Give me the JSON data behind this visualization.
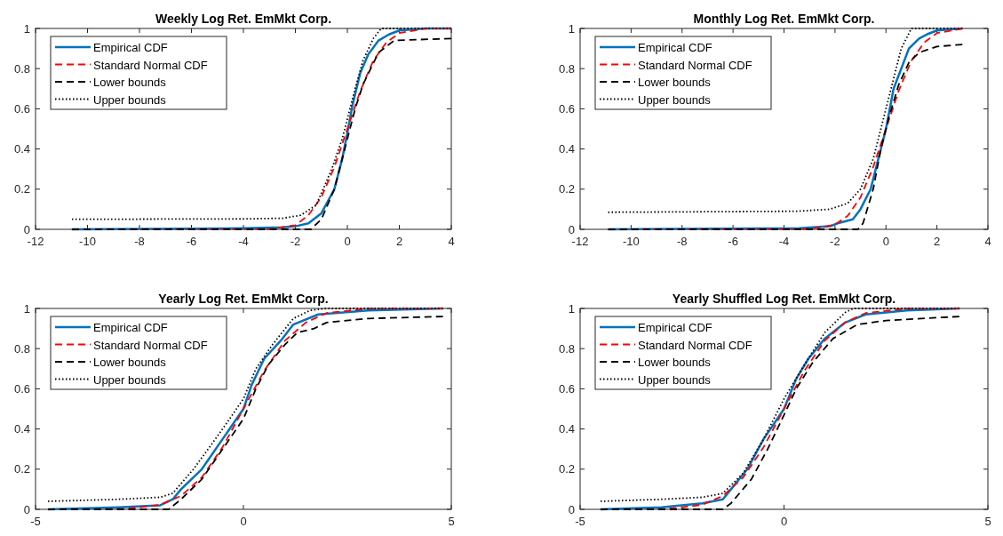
{
  "chart_data": [
    {
      "type": "line",
      "title": "Weekly Log Ret. EmMkt Corp.",
      "xlim": [
        -12,
        4
      ],
      "xticks": [
        -12,
        -10,
        -8,
        -6,
        -4,
        -2,
        0,
        2,
        4
      ],
      "ylim": [
        0,
        1
      ],
      "yticks": [
        0,
        0.2,
        0.4,
        0.6,
        0.8,
        1
      ],
      "grid": false,
      "legend": "top left",
      "series": [
        {
          "name": "Empirical CDF",
          "color": "#0072bd",
          "line_style": "solid",
          "x": [
            -10.6,
            -4,
            -2.5,
            -2,
            -1.5,
            -1,
            -0.5,
            -0.2,
            0,
            0.2,
            0.5,
            0.8,
            1.2,
            1.6,
            2,
            3,
            4
          ],
          "values": [
            0,
            0.005,
            0.01,
            0.015,
            0.03,
            0.08,
            0.2,
            0.35,
            0.48,
            0.62,
            0.78,
            0.87,
            0.94,
            0.97,
            0.99,
            1,
            1
          ]
        },
        {
          "name": "Standard Normal CDF",
          "color": "#ff0000",
          "line_style": "dashed",
          "x": [
            -10.6,
            -3,
            -2,
            -1.5,
            -1,
            -0.5,
            0,
            0.5,
            1,
            1.5,
            2,
            3,
            4
          ],
          "values": [
            0,
            0.001,
            0.02,
            0.07,
            0.16,
            0.31,
            0.5,
            0.69,
            0.84,
            0.93,
            0.977,
            0.999,
            1
          ]
        },
        {
          "name": "Lower bounds",
          "color": "#000000",
          "line_style": "dashed",
          "x": [
            -10.6,
            -1.4,
            -1,
            -0.5,
            0,
            0.3,
            0.6,
            1.2,
            1.8,
            4
          ],
          "values": [
            0,
            0,
            0.05,
            0.2,
            0.45,
            0.6,
            0.72,
            0.88,
            0.94,
            0.95
          ]
        },
        {
          "name": "Upper bounds",
          "color": "#000000",
          "line_style": "dotted",
          "x": [
            -10.6,
            -4,
            -2.5,
            -1.8,
            -1.2,
            -0.6,
            -0.2,
            0,
            0.3,
            0.6,
            1,
            1.3,
            4
          ],
          "values": [
            0.05,
            0.052,
            0.055,
            0.07,
            0.12,
            0.3,
            0.45,
            0.55,
            0.7,
            0.84,
            0.95,
            1,
            1
          ]
        }
      ]
    },
    {
      "type": "line",
      "title": "Monthly Log Ret. EmMkt Corp.",
      "xlim": [
        -12,
        4
      ],
      "xticks": [
        -12,
        -10,
        -8,
        -6,
        -4,
        -2,
        0,
        2,
        4
      ],
      "ylim": [
        0,
        1
      ],
      "yticks": [
        0,
        0.2,
        0.4,
        0.6,
        0.8,
        1
      ],
      "grid": false,
      "legend": "top left",
      "series": [
        {
          "name": "Empirical CDF",
          "color": "#0072bd",
          "line_style": "solid",
          "x": [
            -10.9,
            -3.4,
            -2.2,
            -1.9,
            -1.3,
            -1,
            -0.6,
            -0.3,
            0,
            0.3,
            0.6,
            0.9,
            1.3,
            1.6,
            2,
            3
          ],
          "values": [
            0,
            0.005,
            0.015,
            0.03,
            0.05,
            0.1,
            0.2,
            0.35,
            0.5,
            0.7,
            0.8,
            0.9,
            0.95,
            0.97,
            0.99,
            1
          ]
        },
        {
          "name": "Standard Normal CDF",
          "color": "#ff0000",
          "line_style": "dashed",
          "x": [
            -10.9,
            -3,
            -2,
            -1.5,
            -1,
            -0.5,
            0,
            0.5,
            1,
            1.5,
            2,
            3
          ],
          "values": [
            0,
            0.001,
            0.023,
            0.067,
            0.159,
            0.31,
            0.5,
            0.69,
            0.84,
            0.93,
            0.977,
            0.999
          ]
        },
        {
          "name": "Lower bounds",
          "color": "#000000",
          "line_style": "dashed",
          "x": [
            -10.9,
            -1.1,
            -0.9,
            -0.5,
            -0.2,
            0.1,
            0.5,
            0.9,
            1.3,
            2,
            3
          ],
          "values": [
            0,
            0,
            0.03,
            0.2,
            0.4,
            0.55,
            0.72,
            0.83,
            0.88,
            0.91,
            0.92
          ]
        },
        {
          "name": "Upper bounds",
          "color": "#000000",
          "line_style": "dotted",
          "x": [
            -10.9,
            -3.5,
            -2.2,
            -1.5,
            -1,
            -0.5,
            -0.2,
            0,
            0.3,
            0.6,
            1,
            3
          ],
          "values": [
            0.085,
            0.09,
            0.1,
            0.13,
            0.2,
            0.35,
            0.5,
            0.6,
            0.75,
            0.9,
            1,
            1
          ]
        }
      ]
    },
    {
      "type": "line",
      "title": "Yearly Log Ret. EmMkt Corp.",
      "xlim": [
        -5,
        5
      ],
      "xticks": [
        -5,
        0,
        5
      ],
      "ylim": [
        0,
        1
      ],
      "yticks": [
        0,
        0.2,
        0.4,
        0.6,
        0.8,
        1
      ],
      "grid": false,
      "legend": "top left",
      "series": [
        {
          "name": "Empirical CDF",
          "color": "#0072bd",
          "line_style": "solid",
          "x": [
            -4.7,
            -3,
            -2,
            -1.7,
            -1.5,
            -1,
            -0.5,
            0,
            0.2,
            0.5,
            0.9,
            1.2,
            1.8,
            3,
            4.8
          ],
          "values": [
            0,
            0.01,
            0.02,
            0.05,
            0.1,
            0.2,
            0.35,
            0.5,
            0.62,
            0.75,
            0.84,
            0.92,
            0.97,
            0.99,
            1
          ]
        },
        {
          "name": "Standard Normal CDF",
          "color": "#ff0000",
          "line_style": "dashed",
          "x": [
            -4.7,
            -3,
            -2.5,
            -2,
            -1.5,
            -1,
            -0.5,
            0,
            0.5,
            1,
            1.5,
            2,
            3,
            4.8
          ],
          "values": [
            0,
            0.001,
            0.01,
            0.023,
            0.067,
            0.159,
            0.31,
            0.5,
            0.69,
            0.84,
            0.93,
            0.977,
            0.999,
            1
          ]
        },
        {
          "name": "Lower bounds",
          "color": "#000000",
          "line_style": "dashed",
          "x": [
            -4.7,
            -1.8,
            -1.5,
            -1,
            -0.5,
            0,
            0.3,
            0.6,
            1,
            1.3,
            1.7,
            2,
            3,
            4.8
          ],
          "values": [
            0,
            0,
            0.05,
            0.15,
            0.3,
            0.45,
            0.6,
            0.72,
            0.82,
            0.88,
            0.9,
            0.93,
            0.95,
            0.96
          ]
        },
        {
          "name": "Upper bounds",
          "color": "#000000",
          "line_style": "dotted",
          "x": [
            -4.7,
            -3,
            -2,
            -1.7,
            -1.2,
            -0.5,
            0,
            0.3,
            0.7,
            1.2,
            1.6,
            2,
            4.8
          ],
          "values": [
            0.04,
            0.05,
            0.06,
            0.08,
            0.2,
            0.4,
            0.55,
            0.7,
            0.82,
            0.95,
            0.99,
            1,
            1
          ]
        }
      ]
    },
    {
      "type": "line",
      "title": "Yearly Shuffled Log Ret. EmMkt Corp.",
      "xlim": [
        -5,
        5
      ],
      "xticks": [
        -5,
        0,
        5
      ],
      "ylim": [
        0,
        1
      ],
      "yticks": [
        0,
        0.2,
        0.4,
        0.6,
        0.8,
        1
      ],
      "grid": false,
      "legend": "top left",
      "series": [
        {
          "name": "Empirical CDF",
          "color": "#0072bd",
          "line_style": "solid",
          "x": [
            -4.5,
            -3,
            -2,
            -1.5,
            -1.3,
            -0.9,
            -0.5,
            0,
            0.3,
            0.6,
            1,
            1.5,
            2,
            3,
            4.3
          ],
          "values": [
            0,
            0.01,
            0.03,
            0.05,
            0.1,
            0.2,
            0.35,
            0.5,
            0.65,
            0.75,
            0.85,
            0.93,
            0.97,
            0.99,
            1
          ]
        },
        {
          "name": "Standard Normal CDF",
          "color": "#ff0000",
          "line_style": "dashed",
          "x": [
            -4.5,
            -3,
            -2.5,
            -2,
            -1.5,
            -1,
            -0.5,
            0,
            0.5,
            1,
            1.5,
            2,
            3,
            4.3
          ],
          "values": [
            0,
            0.001,
            0.01,
            0.023,
            0.067,
            0.159,
            0.31,
            0.5,
            0.69,
            0.84,
            0.93,
            0.977,
            0.999,
            1
          ]
        },
        {
          "name": "Lower bounds",
          "color": "#000000",
          "line_style": "dashed",
          "x": [
            -4.5,
            -1.5,
            -1.3,
            -0.8,
            -0.4,
            0,
            0.3,
            0.7,
            1.2,
            1.8,
            2.5,
            4.3
          ],
          "values": [
            0,
            0,
            0.03,
            0.15,
            0.3,
            0.47,
            0.6,
            0.73,
            0.85,
            0.92,
            0.94,
            0.96
          ]
        },
        {
          "name": "Upper bounds",
          "color": "#000000",
          "line_style": "dotted",
          "x": [
            -4.5,
            -3,
            -2,
            -1.5,
            -1,
            -0.5,
            0,
            0.5,
            1,
            1.5,
            1.7,
            4.3
          ],
          "values": [
            0.04,
            0.05,
            0.06,
            0.08,
            0.18,
            0.35,
            0.55,
            0.72,
            0.88,
            0.98,
            1,
            1
          ]
        }
      ]
    }
  ]
}
